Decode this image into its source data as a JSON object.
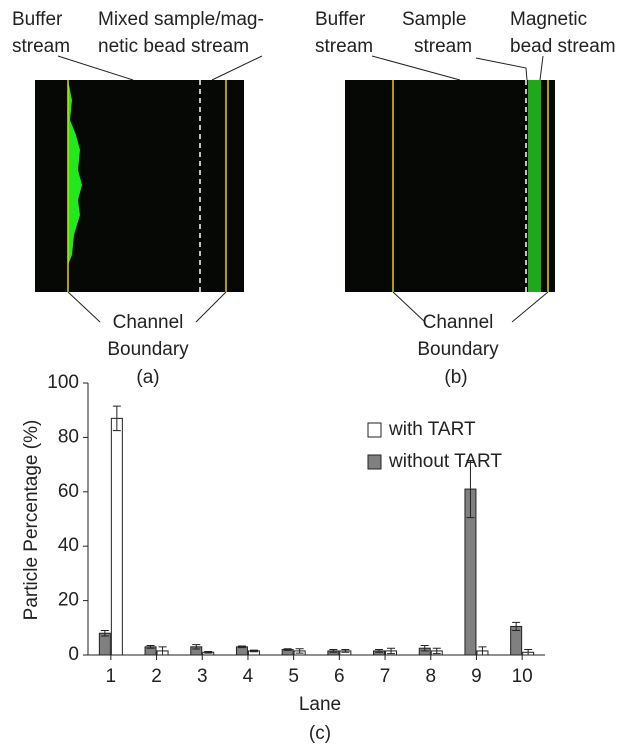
{
  "panel_a": {
    "labels": [
      "Buffer",
      "stream",
      "Mixed sample/mag-",
      "netic bead stream",
      "Channel",
      "Boundary"
    ],
    "caption": "(a)"
  },
  "panel_b": {
    "labels": [
      "Buffer",
      "stream",
      "Sample",
      "stream",
      "Magnetic",
      "bead stream",
      "Channel",
      "Boundary"
    ],
    "caption": "(b)"
  },
  "chart_data": {
    "type": "bar",
    "caption": "(c)",
    "x_label": "Lane",
    "y_label": "Particle Percentage (%)",
    "categories": [
      "1",
      "2",
      "3",
      "4",
      "5",
      "6",
      "7",
      "8",
      "9",
      "10"
    ],
    "series": [
      {
        "name": "without TART",
        "color": "#808080",
        "values": [
          8,
          3,
          3,
          3,
          2,
          1.5,
          1.5,
          2.5,
          61,
          10.5
        ],
        "errors": [
          1,
          0.5,
          0.8,
          0.3,
          0.3,
          0.5,
          0.5,
          1,
          10.5,
          1.5
        ]
      },
      {
        "name": "with TART",
        "color": "#ffffff",
        "values": [
          87,
          1.5,
          1,
          1.5,
          1.5,
          1.5,
          1.5,
          1.5,
          1.5,
          1
        ],
        "errors": [
          4.5,
          1.5,
          0.3,
          0.3,
          0.8,
          0.5,
          1,
          1,
          1.5,
          1
        ]
      }
    ],
    "ylim": [
      0,
      100
    ],
    "yticks": [
      0,
      20,
      40,
      60,
      80,
      100
    ],
    "legend": "upper right"
  }
}
